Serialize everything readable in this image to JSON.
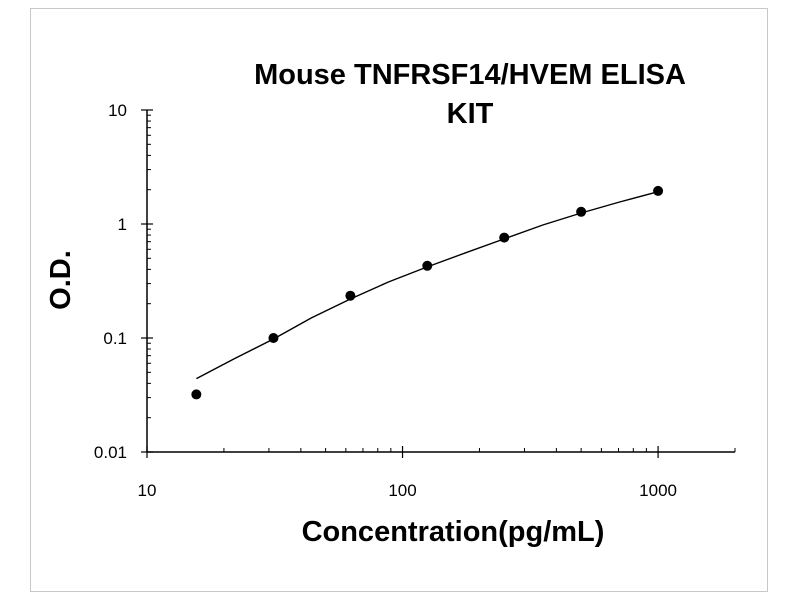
{
  "chart_data": {
    "type": "scatter",
    "title_lines": [
      "Mouse TNFRSF14/HVEM ELISA",
      "KIT"
    ],
    "xlabel": "Concentration(pg/mL)",
    "ylabel": "O.D.",
    "xscale": "log",
    "yscale": "log",
    "xlim": [
      10,
      2000
    ],
    "ylim": [
      0.01,
      10
    ],
    "x_ticks": [
      10,
      100,
      1000
    ],
    "x_tick_labels": [
      "10",
      "100",
      "1000"
    ],
    "y_ticks": [
      0.01,
      0.1,
      1,
      10
    ],
    "y_tick_labels": [
      "0.01",
      "0.1",
      "1",
      "10"
    ],
    "grid": false,
    "legend": "none",
    "colors": {
      "points": "#000000",
      "line": "#000000"
    },
    "points": [
      {
        "x": 15.6,
        "y": 0.032
      },
      {
        "x": 31.25,
        "y": 0.1
      },
      {
        "x": 62.5,
        "y": 0.235
      },
      {
        "x": 125,
        "y": 0.43
      },
      {
        "x": 250,
        "y": 0.76
      },
      {
        "x": 500,
        "y": 1.28
      },
      {
        "x": 1000,
        "y": 1.95
      }
    ],
    "fit_curve": [
      {
        "x": 15.6,
        "y": 0.044
      },
      {
        "x": 22,
        "y": 0.066
      },
      {
        "x": 31.25,
        "y": 0.098
      },
      {
        "x": 44,
        "y": 0.15
      },
      {
        "x": 62.5,
        "y": 0.22
      },
      {
        "x": 88,
        "y": 0.31
      },
      {
        "x": 125,
        "y": 0.42
      },
      {
        "x": 177,
        "y": 0.56
      },
      {
        "x": 250,
        "y": 0.74
      },
      {
        "x": 354,
        "y": 0.98
      },
      {
        "x": 500,
        "y": 1.25
      },
      {
        "x": 707,
        "y": 1.56
      },
      {
        "x": 1000,
        "y": 1.92
      }
    ]
  }
}
